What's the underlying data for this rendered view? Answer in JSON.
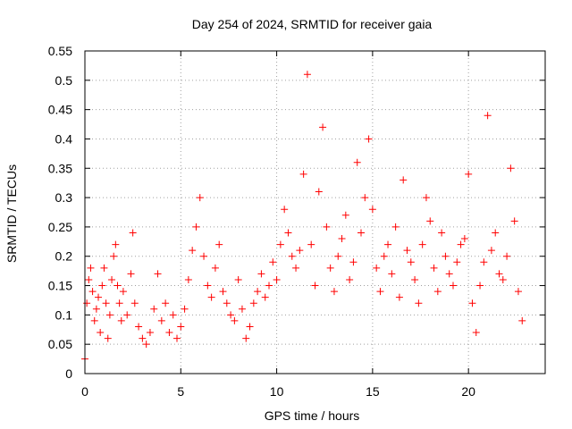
{
  "chart_data": {
    "type": "scatter",
    "title": "Day 254 of 2024, SRMTID for receiver gaia",
    "xlabel": "GPS time / hours",
    "ylabel": "SRMTID / TECUs",
    "xlim": [
      0,
      24
    ],
    "ylim": [
      0,
      0.55
    ],
    "grid": true,
    "marker": "+",
    "color": "#ff0000",
    "x_ticks": [
      0,
      5,
      10,
      15,
      20
    ],
    "x_tick_labels": [
      "0",
      "5",
      "10",
      "15",
      "20"
    ],
    "y_ticks": [
      0,
      0.05,
      0.1,
      0.15,
      0.2,
      0.25,
      0.3,
      0.35,
      0.4,
      0.45,
      0.5,
      0.55
    ],
    "y_tick_labels": [
      "0",
      "0.05",
      "0.1",
      "0.15",
      "0.2",
      "0.25",
      "0.3",
      "0.35",
      "0.4",
      "0.45",
      "0.5",
      "0.55"
    ],
    "series": [
      {
        "name": "SRMTID",
        "x": [
          0.0,
          0.1,
          0.2,
          0.3,
          0.4,
          0.5,
          0.6,
          0.7,
          0.8,
          0.9,
          1.0,
          1.1,
          1.2,
          1.3,
          1.4,
          1.5,
          1.6,
          1.7,
          1.8,
          1.9,
          2.0,
          2.2,
          2.4,
          2.5,
          2.6,
          2.8,
          3.0,
          3.2,
          3.4,
          3.6,
          3.8,
          4.0,
          4.2,
          4.4,
          4.6,
          4.8,
          5.0,
          5.2,
          5.4,
          5.6,
          5.8,
          6.0,
          6.2,
          6.4,
          6.6,
          6.8,
          7.0,
          7.2,
          7.4,
          7.6,
          7.8,
          8.0,
          8.2,
          8.4,
          8.6,
          8.8,
          9.0,
          9.2,
          9.4,
          9.6,
          9.8,
          10.0,
          10.2,
          10.4,
          10.6,
          10.8,
          11.0,
          11.2,
          11.4,
          11.6,
          11.8,
          12.0,
          12.2,
          12.4,
          12.6,
          12.8,
          13.0,
          13.2,
          13.4,
          13.6,
          13.8,
          14.0,
          14.2,
          14.4,
          14.6,
          14.8,
          15.0,
          15.2,
          15.4,
          15.6,
          15.8,
          16.0,
          16.2,
          16.4,
          16.6,
          16.8,
          17.0,
          17.2,
          17.4,
          17.6,
          17.8,
          18.0,
          18.2,
          18.4,
          18.6,
          18.8,
          19.0,
          19.2,
          19.4,
          19.6,
          19.8,
          20.0,
          20.2,
          20.4,
          20.6,
          20.8,
          21.0,
          21.2,
          21.4,
          21.6,
          21.8,
          22.0,
          22.2,
          22.4,
          22.6,
          22.8
        ],
        "y": [
          0.025,
          0.12,
          0.16,
          0.18,
          0.14,
          0.09,
          0.11,
          0.13,
          0.07,
          0.15,
          0.18,
          0.12,
          0.06,
          0.1,
          0.16,
          0.2,
          0.22,
          0.15,
          0.12,
          0.09,
          0.14,
          0.1,
          0.17,
          0.24,
          0.12,
          0.08,
          0.06,
          0.05,
          0.07,
          0.11,
          0.17,
          0.09,
          0.12,
          0.07,
          0.1,
          0.06,
          0.08,
          0.11,
          0.16,
          0.21,
          0.25,
          0.3,
          0.2,
          0.15,
          0.13,
          0.18,
          0.22,
          0.14,
          0.12,
          0.1,
          0.09,
          0.16,
          0.11,
          0.06,
          0.08,
          0.12,
          0.14,
          0.17,
          0.13,
          0.15,
          0.19,
          0.16,
          0.22,
          0.28,
          0.24,
          0.2,
          0.18,
          0.21,
          0.34,
          0.51,
          0.22,
          0.15,
          0.31,
          0.42,
          0.25,
          0.18,
          0.14,
          0.2,
          0.23,
          0.27,
          0.16,
          0.19,
          0.36,
          0.24,
          0.3,
          0.4,
          0.28,
          0.18,
          0.14,
          0.2,
          0.22,
          0.17,
          0.25,
          0.13,
          0.33,
          0.21,
          0.19,
          0.16,
          0.12,
          0.22,
          0.3,
          0.26,
          0.18,
          0.14,
          0.24,
          0.2,
          0.17,
          0.15,
          0.19,
          0.22,
          0.23,
          0.34,
          0.12,
          0.07,
          0.15,
          0.19,
          0.44,
          0.21,
          0.24,
          0.17,
          0.16,
          0.2,
          0.35,
          0.26,
          0.14,
          0.09
        ]
      }
    ]
  }
}
